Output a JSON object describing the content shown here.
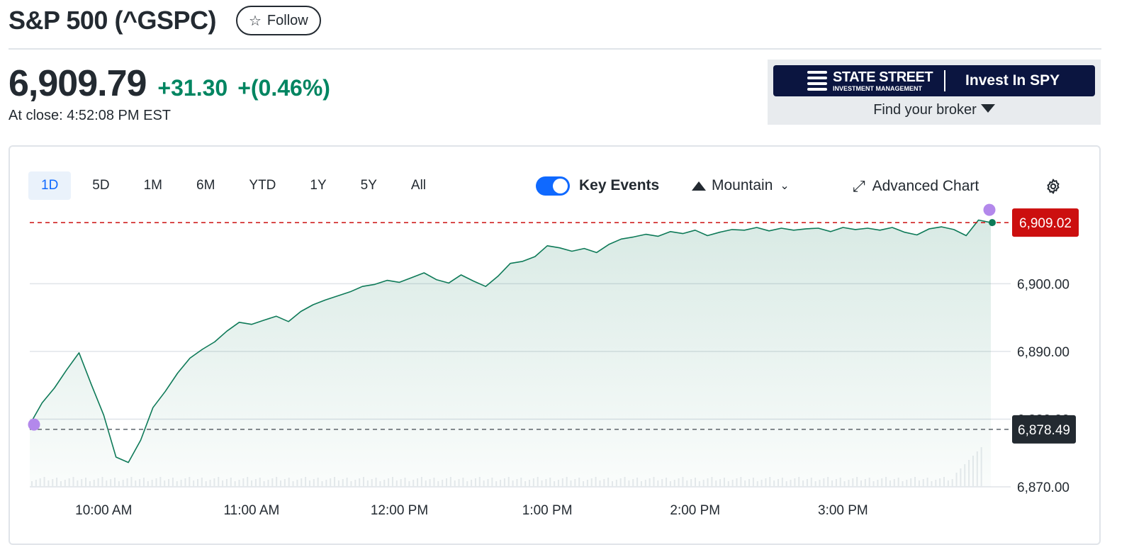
{
  "header": {
    "title": "S&P 500 (^GSPC)",
    "follow_label": "Follow",
    "price": "6,909.79",
    "change": "+31.30",
    "change_pct": "+(0.46%)",
    "close_time": "At close: 4:52:08 PM EST"
  },
  "ad": {
    "brand": "STATE STREET",
    "brand_sub": "INVESTMENT MANAGEMENT",
    "cta": "Invest In SPY",
    "find": "Find your broker"
  },
  "toolbar": {
    "ranges": [
      "1D",
      "5D",
      "1M",
      "6M",
      "YTD",
      "1Y",
      "5Y",
      "All"
    ],
    "active_range": "1D",
    "key_events_label": "Key Events",
    "key_events_on": true,
    "chart_type_label": "Mountain",
    "advanced_label": "Advanced Chart"
  },
  "colors": {
    "up": "#008561",
    "line": "#0e7a58",
    "accent": "#0f69ff",
    "current_badge": "#cc0f0f",
    "prev_close_badge": "#232a31",
    "event_marker": "#b388eb"
  },
  "chart_data": {
    "type": "area",
    "x_ticks": [
      "10:00 AM",
      "11:00 AM",
      "12:00 PM",
      "1:00 PM",
      "2:00 PM",
      "3:00 PM"
    ],
    "y_ticks": [
      "6,870.00",
      "6,880.00",
      "6,890.00",
      "6,900.00"
    ],
    "ylim": [
      6870,
      6910.5
    ],
    "current_value": "6,909.02",
    "previous_close": "6,878.49",
    "series": [
      {
        "x": [
          "9:30",
          "9:35",
          "9:40",
          "9:45",
          "9:50",
          "9:55",
          "10:00",
          "10:05",
          "10:10",
          "10:15",
          "10:20",
          "10:25",
          "10:30",
          "10:35",
          "10:40",
          "10:45",
          "10:50",
          "10:55",
          "11:00",
          "11:05",
          "11:10",
          "11:15",
          "11:20",
          "11:25",
          "11:30",
          "11:35",
          "11:40",
          "11:45",
          "11:50",
          "11:55",
          "12:00",
          "12:05",
          "12:10",
          "12:15",
          "12:20",
          "12:25",
          "12:30",
          "12:35",
          "12:40",
          "12:45",
          "12:50",
          "12:55",
          "13:00",
          "13:05",
          "13:10",
          "13:15",
          "13:20",
          "13:25",
          "13:30",
          "13:35",
          "13:40",
          "13:45",
          "13:50",
          "13:55",
          "14:00",
          "14:05",
          "14:10",
          "14:15",
          "14:20",
          "14:25",
          "14:30",
          "14:35",
          "14:40",
          "14:45",
          "14:50",
          "14:55",
          "15:00",
          "15:05",
          "15:10",
          "15:15",
          "15:20",
          "15:25",
          "15:30",
          "15:35",
          "15:40",
          "15:45",
          "15:50",
          "15:55",
          "16:00"
        ],
        "values": [
          6879.2,
          6882.4,
          6884.6,
          6887.3,
          6889.8,
          6885.1,
          6880.6,
          6874.4,
          6873.6,
          6876.9,
          6881.7,
          6884.1,
          6886.8,
          6889.0,
          6890.3,
          6891.4,
          6893.0,
          6894.3,
          6894.0,
          6894.6,
          6895.2,
          6894.4,
          6895.9,
          6896.9,
          6897.6,
          6898.2,
          6898.8,
          6899.6,
          6899.9,
          6900.5,
          6900.2,
          6900.9,
          6901.6,
          6900.6,
          6900.1,
          6901.3,
          6900.4,
          6899.6,
          6901.1,
          6903.0,
          6903.3,
          6904.0,
          6905.6,
          6905.3,
          6904.8,
          6905.2,
          6904.6,
          6905.8,
          6906.6,
          6906.9,
          6907.3,
          6907.0,
          6907.7,
          6907.4,
          6907.9,
          6907.1,
          6907.6,
          6908.0,
          6907.9,
          6908.3,
          6907.8,
          6908.2,
          6907.9,
          6908.1,
          6908.2,
          6907.7,
          6908.3,
          6908.0,
          6908.2,
          6907.9,
          6908.3,
          6907.6,
          6907.2,
          6908.1,
          6908.4,
          6908.0,
          6907.1,
          6909.4,
          6909.02
        ]
      }
    ],
    "grid": true,
    "legend": "none"
  }
}
